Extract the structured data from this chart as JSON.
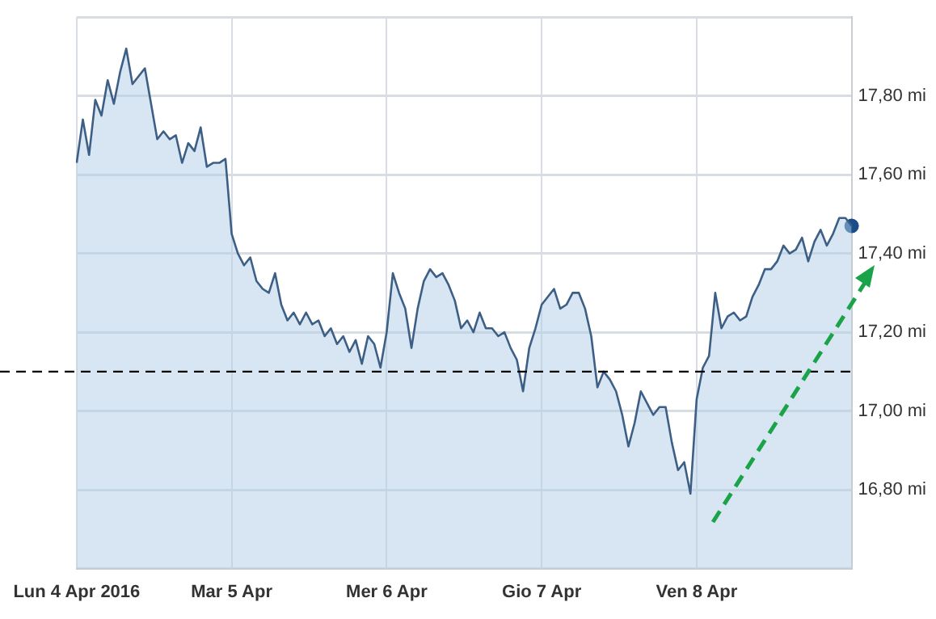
{
  "chart_data": {
    "type": "area",
    "categories": [
      "Lun 4 Apr 2016",
      null,
      null,
      null,
      null,
      null,
      null,
      null,
      null,
      null,
      null,
      null,
      null,
      null,
      null,
      null,
      null,
      null,
      null,
      null,
      null,
      null,
      null,
      null,
      null,
      "Mar 5 Apr",
      null,
      null,
      null,
      null,
      null,
      null,
      null,
      null,
      null,
      null,
      null,
      null,
      null,
      null,
      null,
      null,
      null,
      null,
      null,
      null,
      null,
      null,
      null,
      null,
      "Mer 6 Apr",
      null,
      null,
      null,
      null,
      null,
      null,
      null,
      null,
      null,
      null,
      null,
      null,
      null,
      null,
      null,
      null,
      null,
      null,
      null,
      null,
      null,
      null,
      null,
      null,
      "Gio 7 Apr",
      null,
      null,
      null,
      null,
      null,
      null,
      null,
      null,
      null,
      null,
      null,
      null,
      null,
      null,
      null,
      null,
      null,
      null,
      null,
      null,
      null,
      null,
      null,
      null,
      "Ven 8 Apr",
      null,
      null,
      null,
      null,
      null,
      null,
      null,
      null,
      null,
      null,
      null,
      null,
      null,
      null,
      null,
      null,
      null,
      null,
      null,
      null,
      null,
      null,
      null,
      null,
      null
    ],
    "ylim": [
      16.6,
      18.0
    ],
    "yticks": [
      {
        "value": 16.6,
        "label": null
      },
      {
        "value": 16.8,
        "label": "16,80 mi"
      },
      {
        "value": 17.0,
        "label": "17,00 mi"
      },
      {
        "value": 17.2,
        "label": "17,20 mi"
      },
      {
        "value": 17.4,
        "label": "17,40 mi"
      },
      {
        "value": 17.6,
        "label": "17,60 mi"
      },
      {
        "value": 17.8,
        "label": "17,80 mi"
      },
      {
        "value": 18.0,
        "label": null
      }
    ],
    "grid": true,
    "marker": "none",
    "line_style": "solid",
    "ref_lines": [
      {
        "axis": "y",
        "value": 17.1,
        "color": "#000000",
        "line_style": "dashed"
      }
    ],
    "series": [
      {
        "color": "#3d5f86",
        "values": [
          17.63,
          17.74,
          17.65,
          17.79,
          17.75,
          17.84,
          17.78,
          17.86,
          17.92,
          17.83,
          17.85,
          17.87,
          17.78,
          17.69,
          17.71,
          17.69,
          17.7,
          17.63,
          17.68,
          17.66,
          17.72,
          17.62,
          17.63,
          17.63,
          17.64,
          17.45,
          17.4,
          17.37,
          17.39,
          17.33,
          17.31,
          17.3,
          17.35,
          17.27,
          17.23,
          17.25,
          17.22,
          17.25,
          17.22,
          17.23,
          17.19,
          17.21,
          17.17,
          17.19,
          17.15,
          17.18,
          17.12,
          17.19,
          17.17,
          17.11,
          17.2,
          17.35,
          17.3,
          17.26,
          17.16,
          17.26,
          17.33,
          17.36,
          17.34,
          17.35,
          17.32,
          17.28,
          17.21,
          17.23,
          17.2,
          17.25,
          17.21,
          17.21,
          17.19,
          17.2,
          17.16,
          17.13,
          17.05,
          17.16,
          17.21,
          17.27,
          17.29,
          17.31,
          17.26,
          17.27,
          17.3,
          17.3,
          17.26,
          17.19,
          17.06,
          17.1,
          17.08,
          17.05,
          16.99,
          16.91,
          16.97,
          17.05,
          17.02,
          16.99,
          17.01,
          17.01,
          16.92,
          16.85,
          16.87,
          16.79,
          17.03,
          17.11,
          17.14,
          17.3,
          17.21,
          17.24,
          17.25,
          17.23,
          17.24,
          17.29,
          17.32,
          17.36,
          17.36,
          17.38,
          17.42,
          17.4,
          17.41,
          17.44,
          17.38,
          17.43,
          17.46,
          17.42,
          17.45,
          17.49,
          17.49,
          17.47
        ]
      },
      {
        "type": "scatter",
        "color": "#1a4e8a",
        "marker": "circle",
        "values": [
          null,
          null,
          null,
          null,
          null,
          null,
          null,
          null,
          null,
          null,
          null,
          null,
          null,
          null,
          null,
          null,
          null,
          null,
          null,
          null,
          null,
          null,
          null,
          null,
          null,
          null,
          null,
          null,
          null,
          null,
          null,
          null,
          null,
          null,
          null,
          null,
          null,
          null,
          null,
          null,
          null,
          null,
          null,
          null,
          null,
          null,
          null,
          null,
          null,
          null,
          null,
          null,
          null,
          null,
          null,
          null,
          null,
          null,
          null,
          null,
          null,
          null,
          null,
          null,
          null,
          null,
          null,
          null,
          null,
          null,
          null,
          null,
          null,
          null,
          null,
          null,
          null,
          null,
          null,
          null,
          null,
          null,
          null,
          null,
          null,
          null,
          null,
          null,
          null,
          null,
          null,
          null,
          null,
          null,
          null,
          null,
          null,
          null,
          null,
          null,
          null,
          null,
          null,
          null,
          null,
          null,
          null,
          null,
          null,
          null,
          null,
          null,
          null,
          null,
          null,
          null,
          null,
          null,
          null,
          null,
          null,
          null,
          null,
          null,
          null,
          17.47
        ]
      }
    ]
  }
}
